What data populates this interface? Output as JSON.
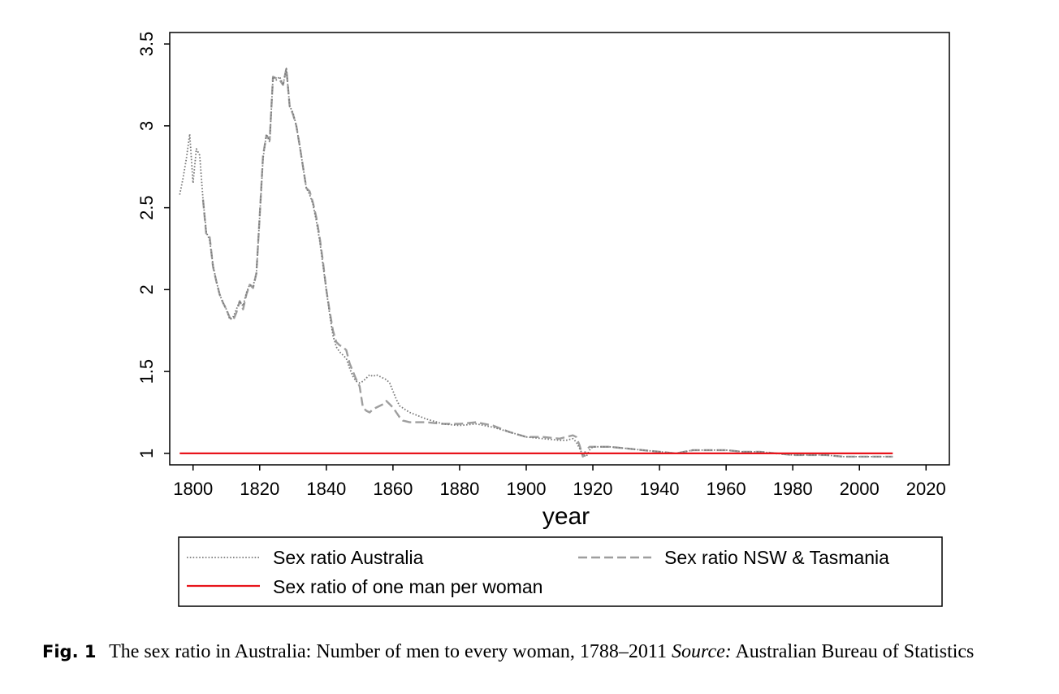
{
  "chart_data": {
    "type": "line",
    "xlabel": "year",
    "ylabel": "",
    "xlim": [
      1793,
      2027
    ],
    "ylim": [
      0.93,
      3.57
    ],
    "xticks": [
      1800,
      1820,
      1840,
      1860,
      1880,
      1900,
      1920,
      1940,
      1960,
      1980,
      2000,
      2020
    ],
    "yticks": [
      1,
      1.5,
      2,
      2.5,
      3,
      3.5
    ],
    "ytick_labels": [
      "1",
      "1.5",
      "2",
      "2.5",
      "3",
      "3.5"
    ],
    "grid": false,
    "legend_position": "bottom",
    "series": [
      {
        "name": "Sex ratio Australia",
        "style": "dotted",
        "color": "#7a7a7a",
        "x": [
          1796,
          1797,
          1798,
          1799,
          1800,
          1801,
          1802,
          1803,
          1804,
          1805,
          1806,
          1807,
          1808,
          1809,
          1810,
          1811,
          1812,
          1813,
          1814,
          1815,
          1816,
          1817,
          1818,
          1819,
          1820,
          1821,
          1822,
          1823,
          1824,
          1825,
          1826,
          1827,
          1828,
          1829,
          1830,
          1831,
          1832,
          1833,
          1834,
          1835,
          1836,
          1837,
          1838,
          1839,
          1840,
          1841,
          1842,
          1843,
          1844,
          1845,
          1846,
          1847,
          1848,
          1849,
          1850,
          1851,
          1852,
          1853,
          1854,
          1855,
          1856,
          1857,
          1858,
          1859,
          1860,
          1861,
          1862,
          1865,
          1870,
          1875,
          1880,
          1885,
          1890,
          1895,
          1900,
          1905,
          1910,
          1912,
          1914,
          1915,
          1916,
          1917,
          1918,
          1919,
          1920,
          1925,
          1930,
          1935,
          1940,
          1945,
          1950,
          1955,
          1960,
          1965,
          1970,
          1975,
          1980,
          1985,
          1990,
          1995,
          2000,
          2005,
          2010
        ],
        "values": [
          2.58,
          2.68,
          2.8,
          2.95,
          2.65,
          2.86,
          2.82,
          2.55,
          2.35,
          2.3,
          2.15,
          2.05,
          1.97,
          1.92,
          1.88,
          1.82,
          1.83,
          1.88,
          1.93,
          1.9,
          1.98,
          2.03,
          2.02,
          2.1,
          2.45,
          2.8,
          2.95,
          2.9,
          3.3,
          3.28,
          3.3,
          3.25,
          3.35,
          3.12,
          3.08,
          3.0,
          2.88,
          2.75,
          2.62,
          2.58,
          2.52,
          2.42,
          2.3,
          2.15,
          2.0,
          1.85,
          1.72,
          1.65,
          1.62,
          1.6,
          1.58,
          1.52,
          1.47,
          1.44,
          1.43,
          1.44,
          1.46,
          1.48,
          1.47,
          1.48,
          1.47,
          1.46,
          1.45,
          1.43,
          1.38,
          1.33,
          1.29,
          1.25,
          1.21,
          1.18,
          1.17,
          1.18,
          1.16,
          1.13,
          1.1,
          1.09,
          1.08,
          1.08,
          1.09,
          1.07,
          1.03,
          0.99,
          0.98,
          1.02,
          1.04,
          1.04,
          1.03,
          1.02,
          1.01,
          1.0,
          1.02,
          1.02,
          1.02,
          1.01,
          1.01,
          1.0,
          0.99,
          0.99,
          0.99,
          0.98,
          0.98,
          0.98,
          0.98
        ]
      },
      {
        "name": "Sex ratio NSW & Tasmania",
        "style": "dashed",
        "color": "#9e9e9e",
        "x": [
          1803,
          1804,
          1805,
          1806,
          1807,
          1808,
          1809,
          1810,
          1811,
          1812,
          1813,
          1814,
          1815,
          1816,
          1817,
          1818,
          1819,
          1820,
          1821,
          1822,
          1823,
          1824,
          1825,
          1826,
          1827,
          1828,
          1829,
          1830,
          1831,
          1832,
          1833,
          1834,
          1835,
          1836,
          1837,
          1838,
          1839,
          1840,
          1841,
          1842,
          1843,
          1844,
          1845,
          1846,
          1847,
          1848,
          1849,
          1850,
          1851,
          1852,
          1853,
          1854,
          1855,
          1856,
          1857,
          1858,
          1859,
          1860,
          1861,
          1862,
          1863,
          1865,
          1870,
          1875,
          1880,
          1885,
          1890,
          1895,
          1900,
          1905,
          1910,
          1912,
          1914,
          1915,
          1916,
          1917,
          1918,
          1919,
          1920,
          1925,
          1930,
          1935,
          1940,
          1945,
          1950,
          1955,
          1960,
          1965,
          1970,
          1975,
          1980,
          1985,
          1990,
          1995,
          2000,
          2005,
          2010
        ],
        "values": [
          2.55,
          2.33,
          2.32,
          2.14,
          2.05,
          1.97,
          1.92,
          1.88,
          1.83,
          1.81,
          1.86,
          1.93,
          1.88,
          1.97,
          2.03,
          2.01,
          2.1,
          2.45,
          2.82,
          2.94,
          2.92,
          3.3,
          3.29,
          3.28,
          3.25,
          3.35,
          3.12,
          3.07,
          3.0,
          2.88,
          2.75,
          2.62,
          2.6,
          2.53,
          2.44,
          2.32,
          2.17,
          2.0,
          1.87,
          1.75,
          1.68,
          1.66,
          1.65,
          1.63,
          1.55,
          1.5,
          1.45,
          1.41,
          1.28,
          1.26,
          1.25,
          1.27,
          1.28,
          1.29,
          1.3,
          1.32,
          1.3,
          1.28,
          1.25,
          1.22,
          1.2,
          1.19,
          1.19,
          1.18,
          1.18,
          1.19,
          1.17,
          1.13,
          1.1,
          1.1,
          1.09,
          1.1,
          1.11,
          1.1,
          1.05,
          0.98,
          1.02,
          1.04,
          1.04,
          1.04,
          1.03,
          1.02,
          1.01,
          1.0,
          1.02,
          1.02,
          1.02,
          1.01,
          1.01,
          1.0,
          0.99,
          0.99,
          0.99,
          0.98,
          0.98,
          0.98,
          0.98
        ]
      },
      {
        "name": "Sex ratio of one man per woman",
        "style": "solid",
        "color": "#e8141b",
        "x": [
          1796,
          2010
        ],
        "values": [
          1,
          1
        ]
      }
    ]
  },
  "caption": {
    "fig_label": "Fig. 1",
    "text": "The sex ratio in Australia: Number of men to every woman, 1788–2011",
    "source_label": "Source:",
    "source_text": "Australian Bureau of Statistics"
  }
}
